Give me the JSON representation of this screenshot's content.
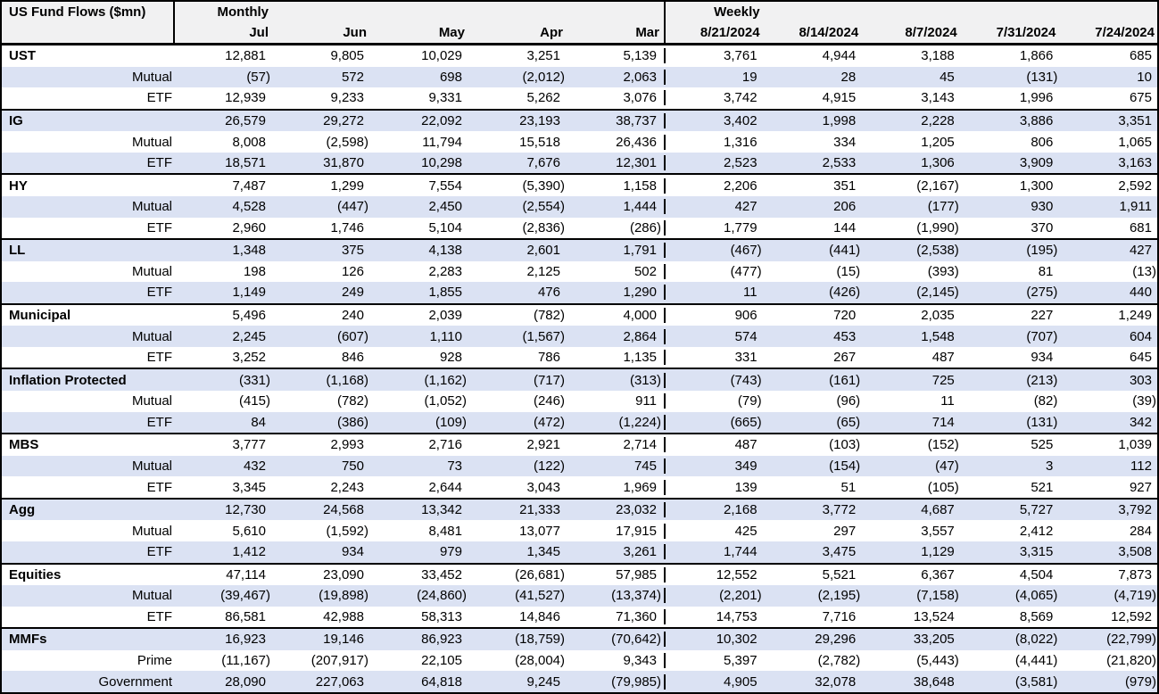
{
  "title": "US Fund Flows ($mn)",
  "sections": [
    {
      "label": "Monthly",
      "columns": [
        "Jul",
        "Jun",
        "May",
        "Apr",
        "Mar"
      ]
    },
    {
      "label": "Weekly",
      "columns": [
        "8/21/2024",
        "8/14/2024",
        "8/7/2024",
        "7/31/2024",
        "7/24/2024"
      ]
    }
  ],
  "colors": {
    "stripe": "#dbe2f3",
    "header_bg": "#f1f1f2",
    "border": "#000000"
  },
  "groups": [
    {
      "name": "UST",
      "monthly": [
        "12,881",
        "9,805",
        "10,029",
        "3,251",
        "5,139"
      ],
      "weekly": [
        "3,761",
        "4,944",
        "3,188",
        "1,866",
        "685"
      ],
      "rows": [
        {
          "label": "Mutual",
          "monthly": [
            "(57)",
            "572",
            "698",
            "(2,012)",
            "2,063"
          ],
          "weekly": [
            "19",
            "28",
            "45",
            "(131)",
            "10"
          ]
        },
        {
          "label": "ETF",
          "monthly": [
            "12,939",
            "9,233",
            "9,331",
            "5,262",
            "3,076"
          ],
          "weekly": [
            "3,742",
            "4,915",
            "3,143",
            "1,996",
            "675"
          ]
        }
      ]
    },
    {
      "name": "IG",
      "monthly": [
        "26,579",
        "29,272",
        "22,092",
        "23,193",
        "38,737"
      ],
      "weekly": [
        "3,402",
        "1,998",
        "2,228",
        "3,886",
        "3,351"
      ],
      "rows": [
        {
          "label": "Mutual",
          "monthly": [
            "8,008",
            "(2,598)",
            "11,794",
            "15,518",
            "26,436"
          ],
          "weekly": [
            "1,316",
            "334",
            "1,205",
            "806",
            "1,065"
          ]
        },
        {
          "label": "ETF",
          "monthly": [
            "18,571",
            "31,870",
            "10,298",
            "7,676",
            "12,301"
          ],
          "weekly": [
            "2,523",
            "2,533",
            "1,306",
            "3,909",
            "3,163"
          ]
        }
      ]
    },
    {
      "name": "HY",
      "monthly": [
        "7,487",
        "1,299",
        "7,554",
        "(5,390)",
        "1,158"
      ],
      "weekly": [
        "2,206",
        "351",
        "(2,167)",
        "1,300",
        "2,592"
      ],
      "rows": [
        {
          "label": "Mutual",
          "monthly": [
            "4,528",
            "(447)",
            "2,450",
            "(2,554)",
            "1,444"
          ],
          "weekly": [
            "427",
            "206",
            "(177)",
            "930",
            "1,911"
          ]
        },
        {
          "label": "ETF",
          "monthly": [
            "2,960",
            "1,746",
            "5,104",
            "(2,836)",
            "(286)"
          ],
          "weekly": [
            "1,779",
            "144",
            "(1,990)",
            "370",
            "681"
          ]
        }
      ]
    },
    {
      "name": "LL",
      "monthly": [
        "1,348",
        "375",
        "4,138",
        "2,601",
        "1,791"
      ],
      "weekly": [
        "(467)",
        "(441)",
        "(2,538)",
        "(195)",
        "427"
      ],
      "rows": [
        {
          "label": "Mutual",
          "monthly": [
            "198",
            "126",
            "2,283",
            "2,125",
            "502"
          ],
          "weekly": [
            "(477)",
            "(15)",
            "(393)",
            "81",
            "(13)"
          ]
        },
        {
          "label": "ETF",
          "monthly": [
            "1,149",
            "249",
            "1,855",
            "476",
            "1,290"
          ],
          "weekly": [
            "11",
            "(426)",
            "(2,145)",
            "(275)",
            "440"
          ]
        }
      ]
    },
    {
      "name": "Municipal",
      "monthly": [
        "5,496",
        "240",
        "2,039",
        "(782)",
        "4,000"
      ],
      "weekly": [
        "906",
        "720",
        "2,035",
        "227",
        "1,249"
      ],
      "rows": [
        {
          "label": "Mutual",
          "monthly": [
            "2,245",
            "(607)",
            "1,110",
            "(1,567)",
            "2,864"
          ],
          "weekly": [
            "574",
            "453",
            "1,548",
            "(707)",
            "604"
          ]
        },
        {
          "label": "ETF",
          "monthly": [
            "3,252",
            "846",
            "928",
            "786",
            "1,135"
          ],
          "weekly": [
            "331",
            "267",
            "487",
            "934",
            "645"
          ]
        }
      ]
    },
    {
      "name": "Inflation Protected",
      "monthly": [
        "(331)",
        "(1,168)",
        "(1,162)",
        "(717)",
        "(313)"
      ],
      "weekly": [
        "(743)",
        "(161)",
        "725",
        "(213)",
        "303"
      ],
      "rows": [
        {
          "label": "Mutual",
          "monthly": [
            "(415)",
            "(782)",
            "(1,052)",
            "(246)",
            "911"
          ],
          "weekly": [
            "(79)",
            "(96)",
            "11",
            "(82)",
            "(39)"
          ]
        },
        {
          "label": "ETF",
          "monthly": [
            "84",
            "(386)",
            "(109)",
            "(472)",
            "(1,224)"
          ],
          "weekly": [
            "(665)",
            "(65)",
            "714",
            "(131)",
            "342"
          ]
        }
      ]
    },
    {
      "name": "MBS",
      "monthly": [
        "3,777",
        "2,993",
        "2,716",
        "2,921",
        "2,714"
      ],
      "weekly": [
        "487",
        "(103)",
        "(152)",
        "525",
        "1,039"
      ],
      "rows": [
        {
          "label": "Mutual",
          "monthly": [
            "432",
            "750",
            "73",
            "(122)",
            "745"
          ],
          "weekly": [
            "349",
            "(154)",
            "(47)",
            "3",
            "112"
          ]
        },
        {
          "label": "ETF",
          "monthly": [
            "3,345",
            "2,243",
            "2,644",
            "3,043",
            "1,969"
          ],
          "weekly": [
            "139",
            "51",
            "(105)",
            "521",
            "927"
          ]
        }
      ]
    },
    {
      "name": "Agg",
      "monthly": [
        "12,730",
        "24,568",
        "13,342",
        "21,333",
        "23,032"
      ],
      "weekly": [
        "2,168",
        "3,772",
        "4,687",
        "5,727",
        "3,792"
      ],
      "rows": [
        {
          "label": "Mutual",
          "monthly": [
            "5,610",
            "(1,592)",
            "8,481",
            "13,077",
            "17,915"
          ],
          "weekly": [
            "425",
            "297",
            "3,557",
            "2,412",
            "284"
          ]
        },
        {
          "label": "ETF",
          "monthly": [
            "1,412",
            "934",
            "979",
            "1,345",
            "3,261"
          ],
          "weekly": [
            "1,744",
            "3,475",
            "1,129",
            "3,315",
            "3,508"
          ]
        }
      ]
    },
    {
      "name": "Equities",
      "monthly": [
        "47,114",
        "23,090",
        "33,452",
        "(26,681)",
        "57,985"
      ],
      "weekly": [
        "12,552",
        "5,521",
        "6,367",
        "4,504",
        "7,873"
      ],
      "rows": [
        {
          "label": "Mutual",
          "monthly": [
            "(39,467)",
            "(19,898)",
            "(24,860)",
            "(41,527)",
            "(13,374)"
          ],
          "weekly": [
            "(2,201)",
            "(2,195)",
            "(7,158)",
            "(4,065)",
            "(4,719)"
          ]
        },
        {
          "label": "ETF",
          "monthly": [
            "86,581",
            "42,988",
            "58,313",
            "14,846",
            "71,360"
          ],
          "weekly": [
            "14,753",
            "7,716",
            "13,524",
            "8,569",
            "12,592"
          ]
        }
      ]
    },
    {
      "name": "MMFs",
      "monthly": [
        "16,923",
        "19,146",
        "86,923",
        "(18,759)",
        "(70,642)"
      ],
      "weekly": [
        "10,302",
        "29,296",
        "33,205",
        "(8,022)",
        "(22,799)"
      ],
      "rows": [
        {
          "label": "Prime",
          "monthly": [
            "(11,167)",
            "(207,917)",
            "22,105",
            "(28,004)",
            "9,343"
          ],
          "weekly": [
            "5,397",
            "(2,782)",
            "(5,443)",
            "(4,441)",
            "(21,820)"
          ]
        },
        {
          "label": "Government",
          "monthly": [
            "28,090",
            "227,063",
            "64,818",
            "9,245",
            "(79,985)"
          ],
          "weekly": [
            "4,905",
            "32,078",
            "38,648",
            "(3,581)",
            "(979)"
          ]
        }
      ]
    }
  ]
}
